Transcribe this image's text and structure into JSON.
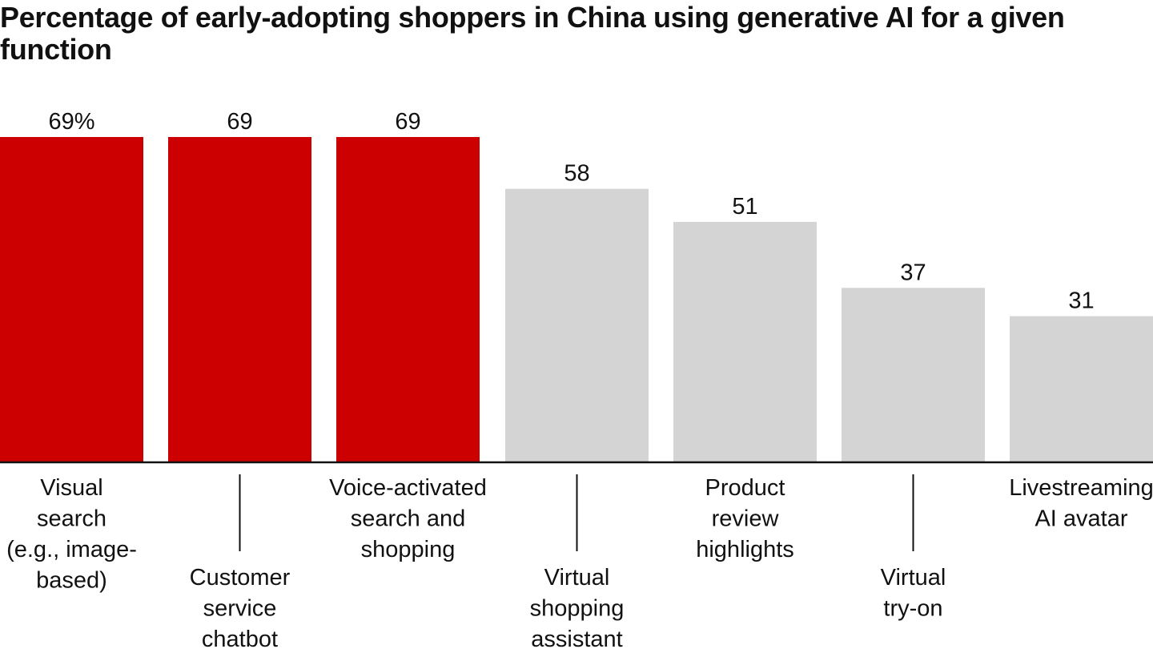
{
  "chart_data": {
    "type": "bar",
    "title": "Percentage of early-adopting shoppers in China using generative AI for a given function",
    "categories": [
      [
        "Visual",
        "search",
        "(e.g., image-",
        "based)"
      ],
      [
        "Customer",
        "service",
        "chatbot"
      ],
      [
        "Voice-activated",
        "search and",
        "shopping"
      ],
      [
        "Virtual",
        "shopping",
        "assistant"
      ],
      [
        "Product",
        "review",
        "highlights"
      ],
      [
        "Virtual",
        "try-on"
      ],
      [
        "Livestreaming",
        "AI avatar"
      ]
    ],
    "values": [
      69,
      69,
      69,
      58,
      51,
      37,
      31
    ],
    "value_labels": [
      "69%",
      "69",
      "69",
      "58",
      "51",
      "37",
      "31"
    ],
    "highlighted": [
      true,
      true,
      true,
      false,
      false,
      false,
      false
    ],
    "colors": {
      "highlight": "#cc0000",
      "default": "#d4d4d4",
      "axis": "#111111"
    },
    "xlabel": "",
    "ylabel": "",
    "ylim": [
      0,
      69
    ],
    "grid": false
  }
}
